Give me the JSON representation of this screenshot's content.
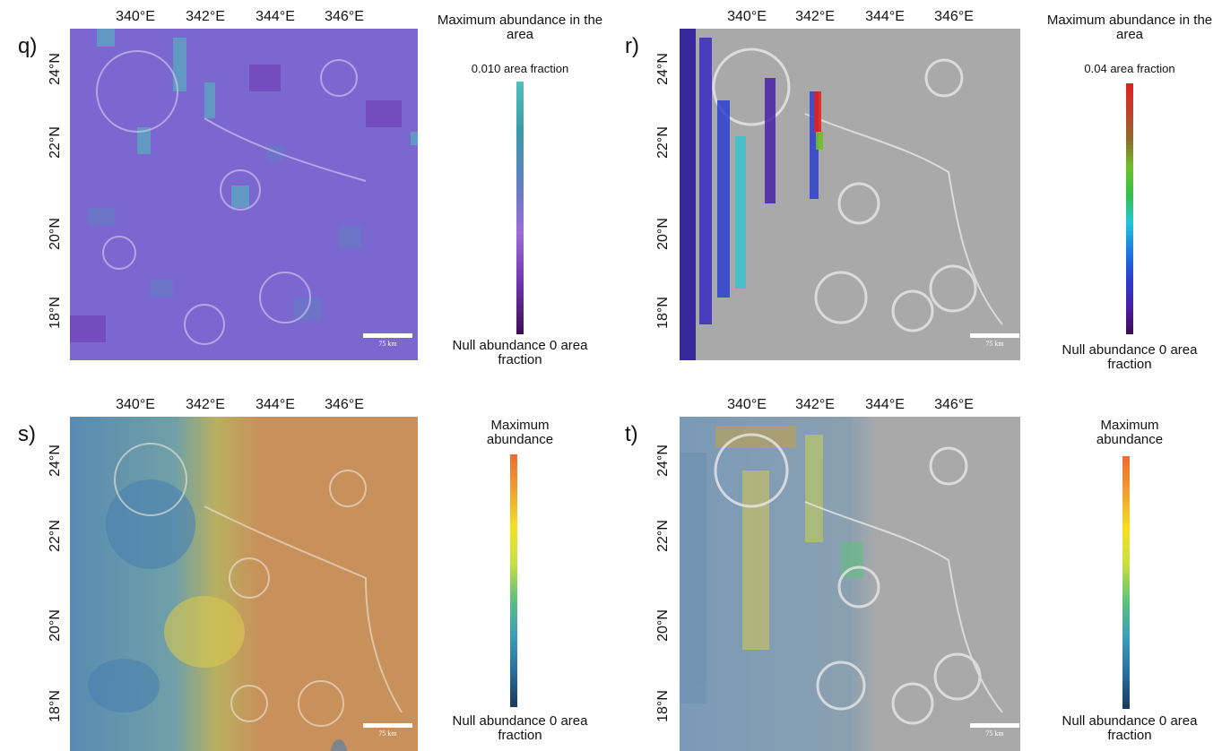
{
  "panels": [
    {
      "id": "q",
      "letter": "q)",
      "lon_labels": [
        "340°E",
        "342°E",
        "344°E",
        "346°E"
      ],
      "lat_labels": [
        "24°N",
        "22°N",
        "20°N",
        "18°N"
      ],
      "scale_label": "75 km",
      "legend": {
        "top": "Maximum  abundance in the area",
        "value": "0.010 area fraction",
        "bottom": "Null abundance 0 area fraction"
      },
      "colorbar": [
        "#3d0d52",
        "#6d35b0",
        "#9b6cd8",
        "#5f7fc0",
        "#3a9aa8",
        "#4fc1ba"
      ],
      "basemap": "#7a68d0",
      "overlay": "mosaic"
    },
    {
      "id": "r",
      "letter": "r)",
      "lon_labels": [
        "340°E",
        "342°E",
        "344°E",
        "346°E"
      ],
      "lat_labels": [
        "24°N",
        "22°N",
        "20°N",
        "18°N"
      ],
      "scale_label": "75 km",
      "legend": {
        "top": "Maximum  abundance in the area",
        "value": "0.04 area fraction",
        "bottom": "Null abundance 0 area fraction"
      },
      "colorbar": [
        "#3d0d52",
        "#4b1fa8",
        "#2b3fd0",
        "#1d7ae0",
        "#22c7d8",
        "#33c04a",
        "#6fbf2a",
        "#8f6a2a",
        "#c0402a",
        "#e02020"
      ],
      "basemap": "#a9a9a9",
      "overlay": "stripes"
    },
    {
      "id": "s",
      "letter": "s)",
      "lon_labels": [
        "340°E",
        "342°E",
        "344°E",
        "346°E"
      ],
      "lat_labels": [
        "24°N",
        "22°N",
        "20°N",
        "18°N"
      ],
      "scale_label": "75 km",
      "legend": {
        "top": "Maximum abundance",
        "value": "",
        "bottom": "Null abundance 0 area fraction"
      },
      "colorbar": [
        "#173a5a",
        "#2a6ea0",
        "#3aa0b8",
        "#5ec27a",
        "#c8e040",
        "#f5e020",
        "#f0a030",
        "#f06a30"
      ],
      "basemap": "#c8905a",
      "overlay": "gradient"
    },
    {
      "id": "t",
      "letter": "t)",
      "lon_labels": [
        "340°E",
        "342°E",
        "344°E",
        "346°E"
      ],
      "lat_labels": [
        "24°N",
        "22°N",
        "20°N",
        "18°N"
      ],
      "scale_label": "75 km",
      "legend": {
        "top": "Maximum abundance",
        "value": "",
        "bottom": "Null abundance 0 area fraction"
      },
      "colorbar": [
        "#173a5a",
        "#2a6ea0",
        "#3aa0b8",
        "#5ec27a",
        "#c8e040",
        "#f5e020",
        "#f0a030",
        "#f06a30"
      ],
      "basemap": "#a9a9a9",
      "overlay": "westwash"
    }
  ]
}
